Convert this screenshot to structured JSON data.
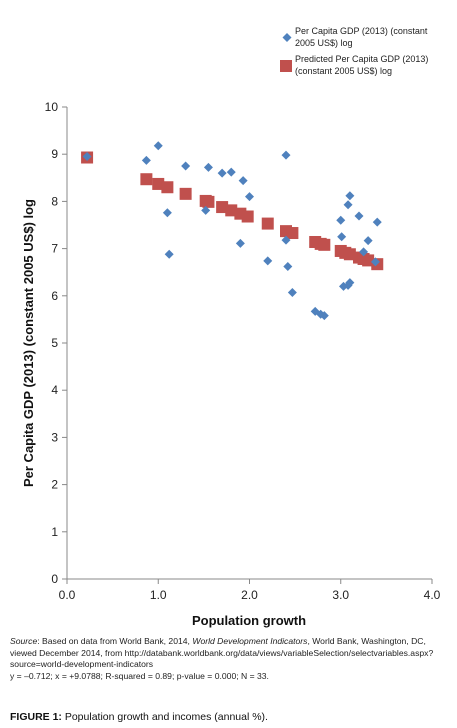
{
  "chart_data": {
    "type": "scatter",
    "xlabel": "Population growth",
    "ylabel": "Per Capita GDP (2013) (constant 2005 US$) log",
    "xlim": [
      0,
      4
    ],
    "ylim": [
      0,
      10
    ],
    "x_ticks": [
      "0.0",
      "1.0",
      "2.0",
      "3.0",
      "4.0"
    ],
    "x_tick_values": [
      0,
      1,
      2,
      3,
      4
    ],
    "y_ticks": [
      "0",
      "1",
      "2",
      "3",
      "4",
      "5",
      "6",
      "7",
      "8",
      "9",
      "10"
    ],
    "y_tick_values": [
      0,
      1,
      2,
      3,
      4,
      5,
      6,
      7,
      8,
      9,
      10
    ],
    "grid": false,
    "legend_position": "top-right",
    "series": [
      {
        "name": "Per Capita GDP (2013) (constant 2005 US$) log",
        "marker": "diamond",
        "color": "#4f81bd",
        "points": [
          [
            0.22,
            8.95
          ],
          [
            0.87,
            8.87
          ],
          [
            1.0,
            9.18
          ],
          [
            1.1,
            7.76
          ],
          [
            1.12,
            6.88
          ],
          [
            1.3,
            8.75
          ],
          [
            1.52,
            7.81
          ],
          [
            1.55,
            8.72
          ],
          [
            1.7,
            8.6
          ],
          [
            1.8,
            8.62
          ],
          [
            1.9,
            7.11
          ],
          [
            1.93,
            8.44
          ],
          [
            2.0,
            8.1
          ],
          [
            2.2,
            6.74
          ],
          [
            2.4,
            8.98
          ],
          [
            2.4,
            7.18
          ],
          [
            2.42,
            6.62
          ],
          [
            2.47,
            6.07
          ],
          [
            2.72,
            5.67
          ],
          [
            2.78,
            5.61
          ],
          [
            2.82,
            5.58
          ],
          [
            3.0,
            7.6
          ],
          [
            3.01,
            7.25
          ],
          [
            3.03,
            6.2
          ],
          [
            3.08,
            7.93
          ],
          [
            3.08,
            6.22
          ],
          [
            3.1,
            8.12
          ],
          [
            3.1,
            6.28
          ],
          [
            3.2,
            7.69
          ],
          [
            3.25,
            6.93
          ],
          [
            3.3,
            7.17
          ],
          [
            3.38,
            6.72
          ],
          [
            3.4,
            7.56
          ]
        ]
      },
      {
        "name": "Predicted Per Capita GDP (2013) (constant 2005 US$) log",
        "marker": "square",
        "color": "#c0504d",
        "points": [
          [
            0.22,
            8.93
          ],
          [
            0.87,
            8.47
          ],
          [
            1.0,
            8.37
          ],
          [
            1.1,
            8.3
          ],
          [
            1.3,
            8.16
          ],
          [
            1.52,
            8.01
          ],
          [
            1.55,
            7.99
          ],
          [
            1.7,
            7.88
          ],
          [
            1.8,
            7.81
          ],
          [
            1.9,
            7.74
          ],
          [
            1.98,
            7.68
          ],
          [
            2.2,
            7.53
          ],
          [
            2.4,
            7.37
          ],
          [
            2.47,
            7.33
          ],
          [
            2.72,
            7.14
          ],
          [
            2.78,
            7.1
          ],
          [
            2.82,
            7.08
          ],
          [
            3.0,
            6.95
          ],
          [
            3.05,
            6.91
          ],
          [
            3.1,
            6.88
          ],
          [
            3.2,
            6.81
          ],
          [
            3.25,
            6.78
          ],
          [
            3.3,
            6.75
          ],
          [
            3.4,
            6.67
          ]
        ]
      }
    ]
  },
  "legend": [
    {
      "lines": [
        "Per Capita GDP (2013) (constant",
        "2005 US$) log"
      ]
    },
    {
      "lines": [
        "Predicted Per Capita GDP (2013)",
        "(constant 2005 US$) log"
      ]
    }
  ],
  "caption": {
    "source_label": "Source",
    "source_intro": ": Based on data from World Bank, 2014, ",
    "source_title": "World Development Indicators",
    "source_rest": ", World Bank, Washington, DC, viewed December 2014, from http://databank.worldbank.org/data/views/variableSelection/selectvariables.aspx?source=world-development-indicators",
    "stats": "y = –0.712; x = +9.0788; R-squared = 0.89; p-value = 0.000; N = 33."
  },
  "figure_label": {
    "number": "FIGURE 1:",
    "title": " Population growth and incomes (annual %)."
  }
}
